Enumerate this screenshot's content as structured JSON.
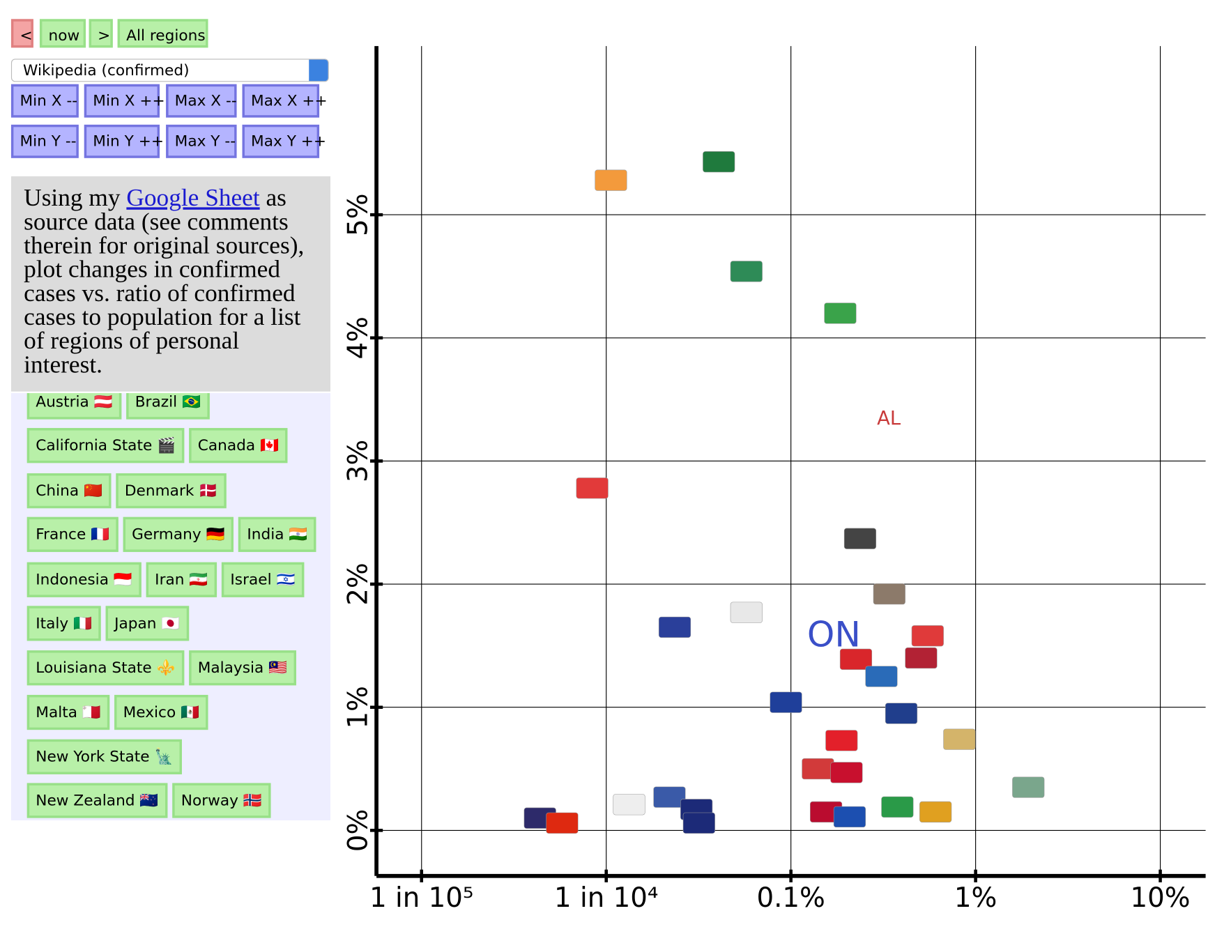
{
  "controls": {
    "nav": [
      "<",
      "now",
      ">",
      "All regions"
    ],
    "source": "Wikipedia (confirmed)",
    "axis_buttons": [
      [
        "Min X --",
        "Min X ++",
        "Max X --",
        "Max X ++"
      ],
      [
        "Min Y --",
        "Min Y ++",
        "Max Y --",
        "Max Y ++"
      ]
    ]
  },
  "description": {
    "before": "Using my ",
    "link": "Google Sheet",
    "after": " as source data (see comments therein for original sources), plot changes in confirmed cases vs. ratio of confirmed cases to population for a list of regions of personal interest."
  },
  "regions": [
    [
      "Austria 🇦🇹",
      "Brazil 🇧🇷"
    ],
    [
      "California State 🎬",
      "Canada 🇨🇦"
    ],
    [
      "China 🇨🇳",
      "Denmark 🇩🇰"
    ],
    [
      "France 🇫🇷",
      "Germany 🇩🇪",
      "India 🇮🇳"
    ],
    [
      "Indonesia 🇮🇩",
      "Iran 🇮🇷",
      "Israel 🇮🇱"
    ],
    [
      "Italy 🇮🇹",
      "Japan 🇯🇵"
    ],
    [
      "Louisiana State ⚜️",
      "Malaysia 🇲🇾"
    ],
    [
      "Malta 🇲🇹",
      "Mexico 🇲🇽"
    ],
    [
      "New York State 🗽"
    ],
    [
      "New Zealand 🇳🇿",
      "Norway 🇳🇴"
    ]
  ],
  "chart_data": {
    "type": "scatter",
    "x_scale": "log",
    "grid": true,
    "xlim": [
      5.7e-06,
      0.176
    ],
    "ylim": [
      -0.37,
      6.37
    ],
    "xticks": [
      {
        "value": 1e-05,
        "label": "1 in 10⁵"
      },
      {
        "value": 0.0001,
        "label": "1 in 10⁴"
      },
      {
        "value": 0.001,
        "label": "0.1%"
      },
      {
        "value": 0.01,
        "label": "1%"
      },
      {
        "value": 0.1,
        "label": "10%"
      }
    ],
    "yticks": [
      {
        "value": 0,
        "label": "0%"
      },
      {
        "value": 1,
        "label": "1%"
      },
      {
        "value": 2,
        "label": "2%"
      },
      {
        "value": 3,
        "label": "3%"
      },
      {
        "value": 4,
        "label": "4%"
      },
      {
        "value": 5,
        "label": "5%"
      }
    ],
    "x": [
      0.000106,
      0.000407,
      0.000574,
      0.00185,
      8.4e-05,
      0.000235,
      0.00237,
      0.00341,
      0.0055,
      0.00225,
      0.00507,
      0.00309,
      0.00094,
      0.00396,
      0.00817,
      0.00188,
      0.0014,
      0.002,
      0.0193,
      0.00022,
      4.38e-05,
      5.77e-05,
      0.000133,
      0.000308,
      0.000318,
      0.00155,
      0.00208,
      0.00377,
      0.00607,
      0.000574
    ],
    "y": [
      5.28,
      5.43,
      4.54,
      4.2,
      2.78,
      1.65,
      2.37,
      1.92,
      1.58,
      1.39,
      1.4,
      1.25,
      1.04,
      0.95,
      0.74,
      0.73,
      0.5,
      0.47,
      0.35,
      0.27,
      0.1,
      0.06,
      0.21,
      0.17,
      0.06,
      0.15,
      0.11,
      0.19,
      0.15,
      1.77
    ],
    "colors": [
      "#f39a3c",
      "#1f7a3d",
      "#2e8b57",
      "#3aa34a",
      "#e23a3a",
      "#2a3f9a",
      "#444444",
      "#8c7a6a",
      "#e03a3a",
      "#d9262b",
      "#b22234",
      "#2a6bb8",
      "#1f3f9a",
      "#203e8c",
      "#d4b46a",
      "#e3202a",
      "#d23a3a",
      "#c8102e",
      "#7aa68c",
      "#3a5aa8",
      "#2d2a6a",
      "#de2910",
      "#eeeeee",
      "#1c2a78",
      "#1c2a78",
      "#ba0c2f",
      "#1c4fb0",
      "#2a9a48",
      "#e0a020",
      "#e8e8e8"
    ],
    "annotations": [
      {
        "text": "ON",
        "x": 0.00171,
        "y": 1.57,
        "color": "#3a4fc8"
      },
      {
        "text": "AL",
        "x": 0.00339,
        "y": 3.34,
        "color": "#c83a3a"
      }
    ]
  }
}
